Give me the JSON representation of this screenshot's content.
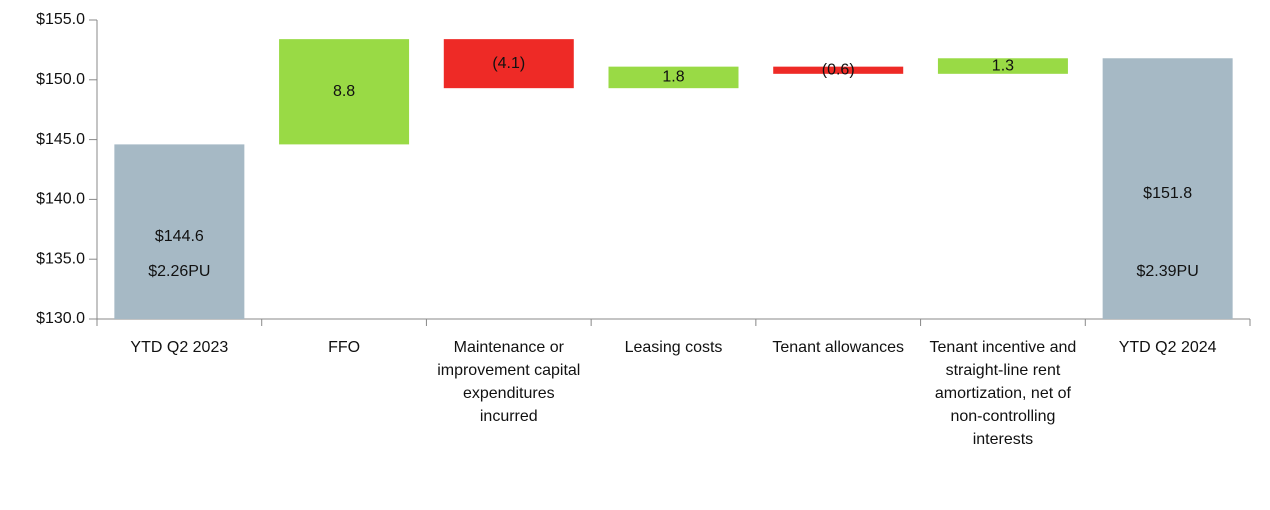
{
  "chart_data": {
    "type": "waterfall",
    "categories": [
      "YTD Q2 2023",
      "FFO",
      "Maintenance or improvement capital expenditures incurred",
      "Leasing costs",
      "Tenant allowances",
      "Tenant incentive and straight-line rent amortization, net of non-controlling interests",
      "YTD Q2 2024"
    ],
    "values": [
      144.6,
      8.8,
      -4.1,
      1.8,
      -0.6,
      1.3,
      151.8
    ],
    "value_labels": [
      "$144.6",
      "8.8",
      "(4.1)",
      "1.8",
      "(0.6)",
      "1.3",
      "$151.8"
    ],
    "per_unit_labels": [
      "$2.26PU",
      null,
      null,
      null,
      null,
      null,
      "$2.39PU"
    ],
    "is_total": [
      true,
      false,
      false,
      false,
      false,
      false,
      true
    ],
    "colors": {
      "total": "#a6b9c5",
      "increase": "#99da45",
      "decrease": "#ee2a26"
    },
    "ylim": [
      130,
      155
    ],
    "yticks": [
      {
        "value": 130,
        "label": "$130.0"
      },
      {
        "value": 135,
        "label": "$135.0"
      },
      {
        "value": 140,
        "label": "$140.0"
      },
      {
        "value": 145,
        "label": "$145.0"
      },
      {
        "value": 150,
        "label": "$150.0"
      },
      {
        "value": 155,
        "label": "$155.0"
      }
    ]
  }
}
